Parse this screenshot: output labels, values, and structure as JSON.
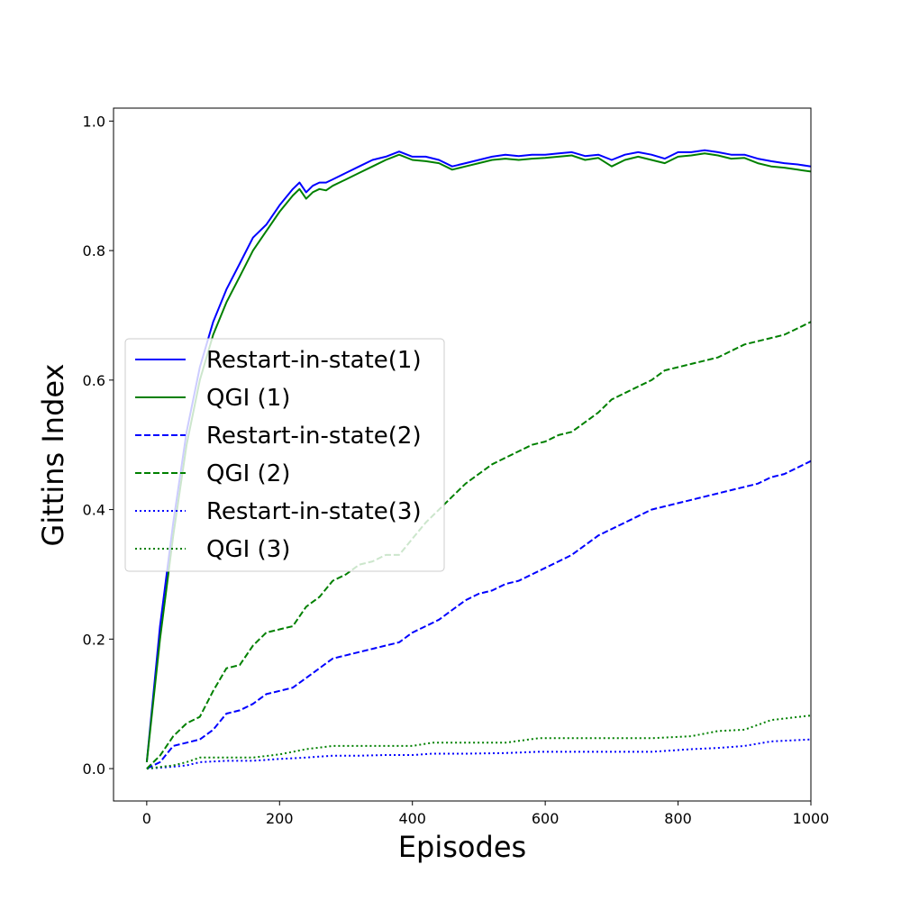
{
  "chart_data": {
    "type": "line",
    "xlabel": "Episodes",
    "ylabel": "Gittins Index",
    "xlim": [
      -50,
      1000
    ],
    "ylim": [
      -0.05,
      1.02
    ],
    "xticks": [
      0,
      200,
      400,
      600,
      800,
      1000
    ],
    "yticks": [
      0.0,
      0.2,
      0.4,
      0.6,
      0.8,
      1.0
    ],
    "xtick_labels": [
      "0",
      "200",
      "400",
      "600",
      "800",
      "1000"
    ],
    "ytick_labels": [
      "0.0",
      "0.2",
      "0.4",
      "0.6",
      "0.8",
      "1.0"
    ],
    "grid": false,
    "legend_position": "center-left",
    "series": [
      {
        "name": "Restart-in-state(1)",
        "color": "#0000ff",
        "style": "solid",
        "x": [
          0,
          20,
          40,
          60,
          80,
          100,
          120,
          140,
          160,
          180,
          200,
          220,
          230,
          240,
          250,
          260,
          270,
          280,
          300,
          320,
          340,
          360,
          380,
          400,
          420,
          440,
          460,
          480,
          500,
          520,
          540,
          560,
          580,
          600,
          620,
          640,
          660,
          680,
          700,
          720,
          740,
          760,
          780,
          800,
          820,
          840,
          860,
          880,
          900,
          920,
          940,
          960,
          980,
          1000
        ],
        "y": [
          0.01,
          0.22,
          0.38,
          0.52,
          0.62,
          0.69,
          0.74,
          0.78,
          0.82,
          0.84,
          0.87,
          0.895,
          0.905,
          0.89,
          0.9,
          0.905,
          0.905,
          0.91,
          0.92,
          0.93,
          0.94,
          0.945,
          0.953,
          0.945,
          0.945,
          0.94,
          0.93,
          0.935,
          0.94,
          0.945,
          0.948,
          0.946,
          0.948,
          0.948,
          0.95,
          0.952,
          0.946,
          0.948,
          0.94,
          0.948,
          0.952,
          0.948,
          0.942,
          0.952,
          0.952,
          0.955,
          0.952,
          0.948,
          0.948,
          0.942,
          0.938,
          0.935,
          0.933,
          0.93
        ]
      },
      {
        "name": "QGI (1)",
        "color": "#008000",
        "style": "solid",
        "x": [
          0,
          20,
          40,
          60,
          80,
          100,
          120,
          140,
          160,
          180,
          200,
          220,
          230,
          240,
          250,
          260,
          270,
          280,
          300,
          320,
          340,
          360,
          380,
          400,
          420,
          440,
          460,
          480,
          500,
          520,
          540,
          560,
          580,
          600,
          620,
          640,
          660,
          680,
          700,
          720,
          740,
          760,
          780,
          800,
          820,
          840,
          860,
          880,
          900,
          920,
          940,
          960,
          980,
          1000
        ],
        "y": [
          0.01,
          0.2,
          0.36,
          0.5,
          0.6,
          0.67,
          0.72,
          0.76,
          0.8,
          0.83,
          0.86,
          0.885,
          0.895,
          0.88,
          0.89,
          0.895,
          0.893,
          0.9,
          0.91,
          0.92,
          0.93,
          0.94,
          0.948,
          0.94,
          0.938,
          0.935,
          0.925,
          0.93,
          0.935,
          0.94,
          0.942,
          0.94,
          0.942,
          0.943,
          0.945,
          0.947,
          0.94,
          0.943,
          0.93,
          0.94,
          0.945,
          0.94,
          0.935,
          0.945,
          0.947,
          0.95,
          0.947,
          0.942,
          0.943,
          0.935,
          0.93,
          0.928,
          0.925,
          0.922
        ]
      },
      {
        "name": "Restart-in-state(2)",
        "color": "#0000ff",
        "style": "dashed",
        "x": [
          0,
          20,
          40,
          60,
          80,
          100,
          120,
          140,
          160,
          180,
          200,
          220,
          240,
          260,
          280,
          300,
          320,
          340,
          360,
          380,
          400,
          420,
          440,
          460,
          480,
          500,
          520,
          540,
          560,
          580,
          600,
          620,
          640,
          660,
          680,
          700,
          720,
          740,
          760,
          780,
          800,
          820,
          840,
          860,
          880,
          900,
          920,
          940,
          960,
          980,
          1000
        ],
        "y": [
          0.0,
          0.01,
          0.035,
          0.04,
          0.045,
          0.06,
          0.085,
          0.09,
          0.1,
          0.115,
          0.12,
          0.125,
          0.14,
          0.155,
          0.17,
          0.175,
          0.18,
          0.185,
          0.19,
          0.195,
          0.21,
          0.22,
          0.23,
          0.245,
          0.26,
          0.27,
          0.275,
          0.285,
          0.29,
          0.3,
          0.31,
          0.32,
          0.33,
          0.345,
          0.36,
          0.37,
          0.38,
          0.39,
          0.4,
          0.405,
          0.41,
          0.415,
          0.42,
          0.425,
          0.43,
          0.435,
          0.44,
          0.45,
          0.455,
          0.465,
          0.475
        ]
      },
      {
        "name": "QGI (2)",
        "color": "#008000",
        "style": "dashed",
        "x": [
          0,
          20,
          40,
          60,
          80,
          100,
          120,
          140,
          160,
          180,
          200,
          220,
          240,
          260,
          280,
          300,
          320,
          340,
          360,
          380,
          400,
          420,
          440,
          460,
          480,
          500,
          520,
          540,
          560,
          580,
          600,
          620,
          640,
          660,
          680,
          700,
          720,
          740,
          760,
          780,
          800,
          820,
          840,
          860,
          880,
          900,
          920,
          940,
          960,
          980,
          1000
        ],
        "y": [
          0.0,
          0.02,
          0.05,
          0.07,
          0.08,
          0.12,
          0.155,
          0.16,
          0.19,
          0.21,
          0.215,
          0.22,
          0.25,
          0.265,
          0.29,
          0.3,
          0.315,
          0.32,
          0.33,
          0.33,
          0.355,
          0.38,
          0.4,
          0.42,
          0.44,
          0.455,
          0.47,
          0.48,
          0.49,
          0.5,
          0.505,
          0.515,
          0.52,
          0.535,
          0.55,
          0.57,
          0.58,
          0.59,
          0.6,
          0.615,
          0.62,
          0.625,
          0.63,
          0.635,
          0.645,
          0.655,
          0.66,
          0.665,
          0.67,
          0.68,
          0.69
        ]
      },
      {
        "name": "Restart-in-state(3)",
        "color": "#0000ff",
        "style": "dotted",
        "x": [
          0,
          40,
          60,
          80,
          120,
          160,
          200,
          240,
          280,
          320,
          360,
          400,
          430,
          480,
          540,
          590,
          640,
          700,
          760,
          820,
          860,
          900,
          940,
          1000
        ],
        "y": [
          0.0,
          0.003,
          0.005,
          0.01,
          0.012,
          0.012,
          0.015,
          0.017,
          0.02,
          0.02,
          0.021,
          0.021,
          0.023,
          0.023,
          0.024,
          0.026,
          0.026,
          0.026,
          0.026,
          0.03,
          0.032,
          0.035,
          0.042,
          0.045
        ]
      },
      {
        "name": "QGI (3)",
        "color": "#008000",
        "style": "dotted",
        "x": [
          0,
          40,
          60,
          80,
          120,
          160,
          200,
          240,
          280,
          320,
          360,
          400,
          430,
          480,
          540,
          590,
          640,
          700,
          760,
          820,
          860,
          900,
          940,
          1000
        ],
        "y": [
          0.0,
          0.005,
          0.01,
          0.017,
          0.017,
          0.017,
          0.022,
          0.03,
          0.035,
          0.035,
          0.035,
          0.035,
          0.04,
          0.04,
          0.04,
          0.047,
          0.047,
          0.047,
          0.047,
          0.05,
          0.058,
          0.06,
          0.075,
          0.082
        ]
      }
    ]
  }
}
